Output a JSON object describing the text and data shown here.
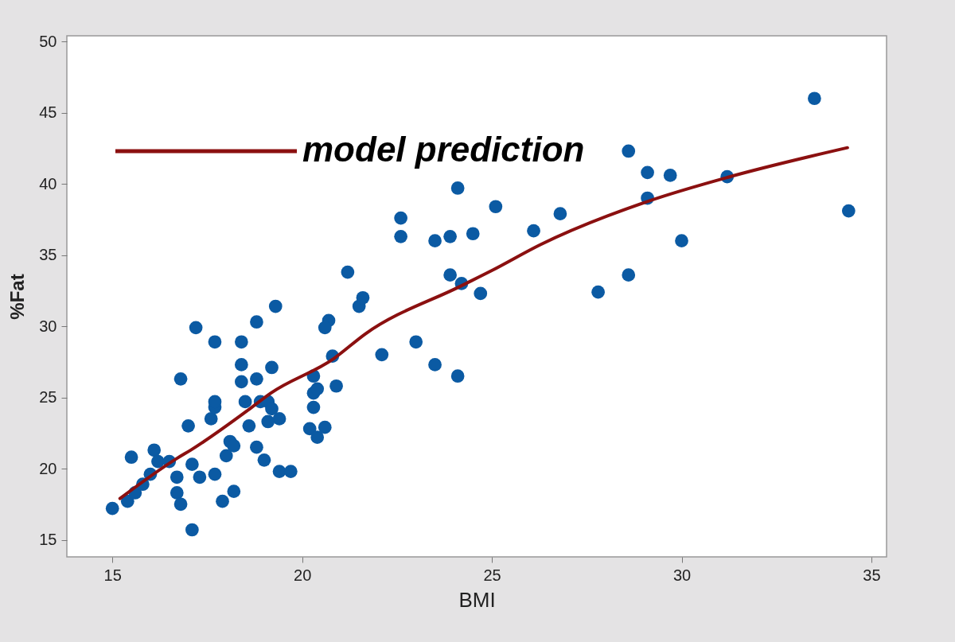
{
  "chart_data": {
    "type": "scatter",
    "xlabel": "BMI",
    "ylabel": "%Fat",
    "xlim": [
      13.8,
      35.4
    ],
    "ylim": [
      13.8,
      50.4
    ],
    "xticks": [
      15,
      20,
      25,
      30,
      35
    ],
    "yticks": [
      15,
      20,
      25,
      30,
      35,
      40,
      45,
      50
    ],
    "grid": false,
    "legend": "top left",
    "series": [
      {
        "type": "scatter",
        "marker": "circle",
        "color": "#0b5aa3",
        "x": [
          15.0,
          15.4,
          15.6,
          15.8,
          16.0,
          15.5,
          16.1,
          16.2,
          16.5,
          16.7,
          16.7,
          16.8,
          17.1,
          17.1,
          17.3,
          17.7,
          17.9,
          18.2,
          17.0,
          16.8,
          17.2,
          17.6,
          17.7,
          17.7,
          17.7,
          18.4,
          18.4,
          18.4,
          18.8,
          18.8,
          18.5,
          18.9,
          18.6,
          18.1,
          18.2,
          18.0,
          18.8,
          19.0,
          21.2,
          21.5,
          21.6,
          20.7,
          20.6,
          19.3,
          19.2,
          20.8,
          20.9,
          20.3,
          20.3,
          20.4,
          20.3,
          20.2,
          20.4,
          20.6,
          19.1,
          19.2,
          19.4,
          19.1,
          19.4,
          19.7,
          24.1,
          25.1,
          26.1,
          22.6,
          22.6,
          23.5,
          23.9,
          24.5,
          23.9,
          24.2,
          24.7,
          22.1,
          23.0,
          23.5,
          24.1,
          33.5,
          28.6,
          29.1,
          29.7,
          29.1,
          31.2,
          34.4,
          26.8,
          30.0,
          28.6,
          27.8
        ],
        "values": [
          17.2,
          17.7,
          18.3,
          18.9,
          19.6,
          20.8,
          21.3,
          20.5,
          20.5,
          19.4,
          18.3,
          17.5,
          15.7,
          20.3,
          19.4,
          19.6,
          17.7,
          18.4,
          23.0,
          26.3,
          29.9,
          23.5,
          24.3,
          24.7,
          28.9,
          28.9,
          27.3,
          26.1,
          26.3,
          30.3,
          24.7,
          24.7,
          23.0,
          21.9,
          21.6,
          20.9,
          21.5,
          20.6,
          33.8,
          31.4,
          32.0,
          30.4,
          29.9,
          31.4,
          27.1,
          27.9,
          25.8,
          26.5,
          25.3,
          25.6,
          24.3,
          22.8,
          22.2,
          22.9,
          24.7,
          24.2,
          23.5,
          23.3,
          19.8,
          19.8,
          39.7,
          38.4,
          36.7,
          37.6,
          36.3,
          36.0,
          36.3,
          36.5,
          33.6,
          33.0,
          32.3,
          28.0,
          28.9,
          27.3,
          26.5,
          46.0,
          42.3,
          40.8,
          40.6,
          39.0,
          40.5,
          38.1,
          37.9,
          36.0,
          33.6,
          32.4
        ]
      },
      {
        "type": "line",
        "name": "model prediction",
        "color": "#8b1010",
        "x": [
          15.2,
          16.72,
          17.07,
          18.6,
          19.16,
          20.84,
          21.67,
          24.18,
          25.02,
          26.28,
          29.14,
          31.23,
          34.37
        ],
        "values": [
          17.9,
          20.75,
          21.31,
          24.16,
          25.28,
          27.74,
          29.47,
          32.82,
          33.94,
          35.73,
          38.8,
          40.47,
          42.54
        ]
      }
    ]
  }
}
